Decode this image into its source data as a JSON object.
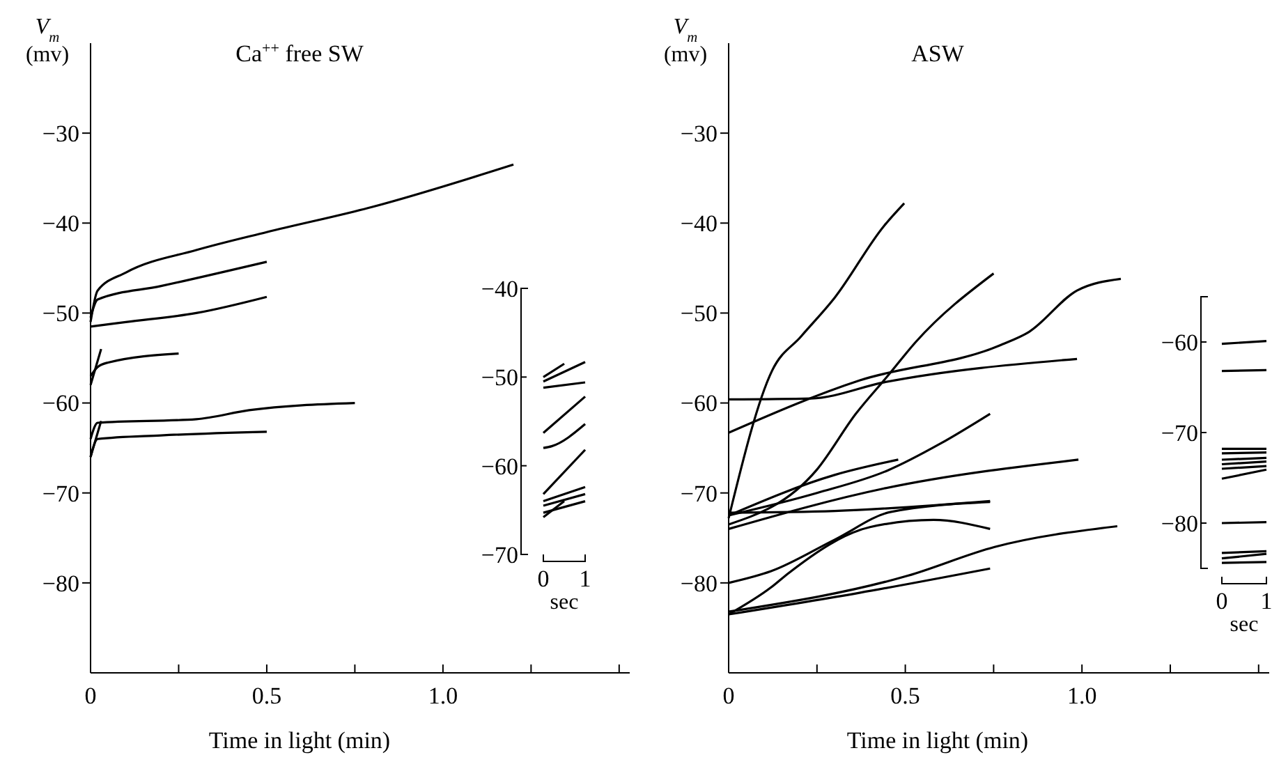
{
  "chart_data": [
    {
      "type": "line",
      "title": "Ca$^{++}$ free SW",
      "xlabel": "Time in light (min)",
      "ylabel": "V$_{m}$\n(mv)",
      "xlim": [
        0,
        1.53
      ],
      "ylim": [
        -90,
        -20
      ],
      "xticks": [
        0,
        {
          "value": 0.25,
          "label": null
        },
        0.5,
        {
          "value": 0.75,
          "label": null
        },
        {
          "value": 1.0,
          "label": "1.0"
        },
        {
          "value": 1.25,
          "label": null
        },
        {
          "value": 1.5,
          "label": null
        }
      ],
      "yticks": [
        -80,
        -70,
        -60,
        -50,
        -40,
        -30
      ],
      "series": [
        {
          "color": "#000000",
          "x": [
            0,
            0.02,
            0.1,
            0.3,
            0.5,
            0.8,
            1.2
          ],
          "values": [
            -51,
            -47.5,
            -45.5,
            -43,
            -41,
            -38.2,
            -33.5
          ]
        },
        {
          "color": "#000000",
          "x": [
            0,
            0.02,
            0.2,
            0.5
          ],
          "values": [
            -50.5,
            -48.5,
            -47,
            -44.3
          ]
        },
        {
          "color": "#000000",
          "x": [
            0,
            0.1,
            0.3,
            0.5
          ],
          "values": [
            -51.5,
            -51,
            -50,
            -48.2
          ]
        },
        {
          "color": "#000000",
          "x": [
            0,
            0.02,
            0.05,
            0.25
          ],
          "values": [
            -57,
            -56,
            -55.5,
            -54.5
          ]
        },
        {
          "color": "#000000",
          "x": [
            0,
            0.03
          ],
          "values": [
            -58,
            -54
          ]
        },
        {
          "color": "#000000",
          "x": [
            0,
            0.02,
            0.3,
            0.45,
            0.75
          ],
          "values": [
            -64,
            -62.2,
            -61.8,
            -60.8,
            -60
          ]
        },
        {
          "color": "#000000",
          "x": [
            0,
            0.02,
            0.2,
            0.5
          ],
          "values": [
            -66,
            -64,
            -63.6,
            -63.2
          ]
        },
        {
          "color": "#000000",
          "x": [
            0,
            0.03
          ],
          "values": [
            -66,
            -62
          ]
        }
      ]
    },
    {
      "type": "line",
      "xlabel": "sec",
      "xlim": [
        0,
        1
      ],
      "ylim": [
        -70,
        -40
      ],
      "xticks": [
        0,
        1
      ],
      "yticks": [
        -70,
        -60,
        -50,
        -40
      ],
      "series": [
        {
          "color": "#000000",
          "x": [
            0,
            0.5
          ],
          "values": [
            -50,
            -48.5
          ]
        },
        {
          "color": "#000000",
          "x": [
            0,
            1
          ],
          "values": [
            -50.5,
            -48.3
          ]
        },
        {
          "color": "#000000",
          "x": [
            0,
            1
          ],
          "values": [
            -51.2,
            -50.6
          ]
        },
        {
          "color": "#000000",
          "x": [
            0,
            1
          ],
          "values": [
            -56.3,
            -52.2
          ]
        },
        {
          "color": "#000000",
          "x": [
            0,
            0.2,
            1
          ],
          "values": [
            -58,
            -57.8,
            -55.3
          ]
        },
        {
          "color": "#000000",
          "x": [
            0,
            1
          ],
          "values": [
            -63.2,
            -58.2
          ]
        },
        {
          "color": "#000000",
          "x": [
            0,
            1
          ],
          "values": [
            -64,
            -62.4
          ]
        },
        {
          "color": "#000000",
          "x": [
            0,
            1
          ],
          "values": [
            -64.5,
            -63.2
          ]
        },
        {
          "color": "#000000",
          "x": [
            0,
            1
          ],
          "values": [
            -65.3,
            -64
          ]
        },
        {
          "color": "#000000",
          "x": [
            0,
            0.5
          ],
          "values": [
            -65.8,
            -64
          ]
        }
      ]
    },
    {
      "type": "line",
      "title": "ASW",
      "xlabel": "Time in light (min)",
      "ylabel": "V$_{m}$\n(mv)",
      "xlim": [
        0,
        1.53
      ],
      "ylim": [
        -90,
        -20
      ],
      "xticks": [
        0,
        {
          "value": 0.25,
          "label": null
        },
        0.5,
        {
          "value": 0.75,
          "label": null
        },
        {
          "value": 1.0,
          "label": "1.0"
        },
        {
          "value": 1.25,
          "label": null
        },
        {
          "value": 1.5,
          "label": null
        }
      ],
      "yticks": [
        -80,
        -70,
        -60,
        -50,
        -40,
        -30
      ],
      "series": [
        {
          "color": "#000000",
          "x": [
            0,
            0.123,
            0.205,
            0.3,
            0.44,
            0.497
          ],
          "values": [
            -72.8,
            -56.4,
            -52.6,
            -48.3,
            -40.3,
            -37.8
          ]
        },
        {
          "color": "#000000",
          "x": [
            0,
            0.25,
            0.36,
            0.45,
            0.53,
            0.75
          ],
          "values": [
            -73.5,
            -67.4,
            -61.2,
            -57,
            -53.2,
            -45.6
          ]
        },
        {
          "color": "#000000",
          "x": [
            0,
            0.37,
            0.767,
            0.85,
            0.986,
            1.11
          ],
          "values": [
            -63.3,
            -57.5,
            -53.6,
            -52.1,
            -47.5,
            -46.2
          ]
        },
        {
          "color": "#000000",
          "x": [
            0,
            0.233,
            0.44,
            0.986
          ],
          "values": [
            -59.6,
            -59.5,
            -57.7,
            -55.1
          ]
        },
        {
          "color": "#000000",
          "x": [
            0,
            0.25,
            0.45,
            0.6,
            0.74
          ],
          "values": [
            -72.5,
            -70,
            -67.5,
            -64.5,
            -61.2
          ]
        },
        {
          "color": "#000000",
          "x": [
            0,
            0.3,
            0.48
          ],
          "values": [
            -72.5,
            -68,
            -66.3
          ]
        },
        {
          "color": "#000000",
          "x": [
            0,
            0.44,
            0.99
          ],
          "values": [
            -74,
            -69.5,
            -66.3
          ]
        },
        {
          "color": "#000000",
          "x": [
            0,
            0.3,
            0.74
          ],
          "values": [
            -72.2,
            -72,
            -70.9
          ]
        },
        {
          "color": "#000000",
          "x": [
            0,
            0.12,
            0.3,
            0.46,
            0.74
          ],
          "values": [
            -80,
            -78.7,
            -75.2,
            -72.1,
            -71
          ]
        },
        {
          "color": "#000000",
          "x": [
            0,
            0.12,
            0.17,
            0.4,
            0.58,
            0.74
          ],
          "values": [
            -83.5,
            -80.5,
            -78.9,
            -73.8,
            -73,
            -74
          ]
        },
        {
          "color": "#000000",
          "x": [
            0,
            0.507,
            0.753,
            1.1
          ],
          "values": [
            -83.2,
            -79.2,
            -76,
            -73.7
          ]
        },
        {
          "color": "#000000",
          "x": [
            0,
            0.37,
            0.74
          ],
          "values": [
            -83.5,
            -81.1,
            -78.4
          ]
        }
      ]
    },
    {
      "type": "line",
      "xlabel": "sec",
      "xlim": [
        0,
        1
      ],
      "ylim": [
        -85,
        -55
      ],
      "xticks": [
        0,
        1
      ],
      "yticks": [
        {
          "value": -85,
          "label": null
        },
        -80,
        -70,
        -60,
        {
          "value": -55,
          "label": null
        }
      ],
      "series": [
        {
          "color": "#000000",
          "x": [
            0,
            1
          ],
          "values": [
            -60.2,
            -59.9
          ]
        },
        {
          "color": "#000000",
          "x": [
            0,
            1
          ],
          "values": [
            -63.2,
            -63.1
          ]
        },
        {
          "color": "#000000",
          "x": [
            0,
            1
          ],
          "values": [
            -71.8,
            -71.8
          ]
        },
        {
          "color": "#000000",
          "x": [
            0,
            1
          ],
          "values": [
            -72.3,
            -72.2
          ]
        },
        {
          "color": "#000000",
          "x": [
            0,
            1
          ],
          "values": [
            -73,
            -72.8
          ]
        },
        {
          "color": "#000000",
          "x": [
            0,
            1
          ],
          "values": [
            -73.5,
            -73.2
          ]
        },
        {
          "color": "#000000",
          "x": [
            0,
            1
          ],
          "values": [
            -74,
            -73.7
          ]
        },
        {
          "color": "#000000",
          "x": [
            0,
            1
          ],
          "values": [
            -75.1,
            -74.1
          ]
        },
        {
          "color": "#000000",
          "x": [
            0,
            1
          ],
          "values": [
            -80,
            -79.9
          ]
        },
        {
          "color": "#000000",
          "x": [
            0,
            1
          ],
          "values": [
            -83.3,
            -83.1
          ]
        },
        {
          "color": "#000000",
          "x": [
            0,
            1
          ],
          "values": [
            -83.9,
            -83.4
          ]
        },
        {
          "color": "#000000",
          "x": [
            0,
            1
          ],
          "values": [
            -84.4,
            -84.3
          ]
        }
      ]
    }
  ]
}
